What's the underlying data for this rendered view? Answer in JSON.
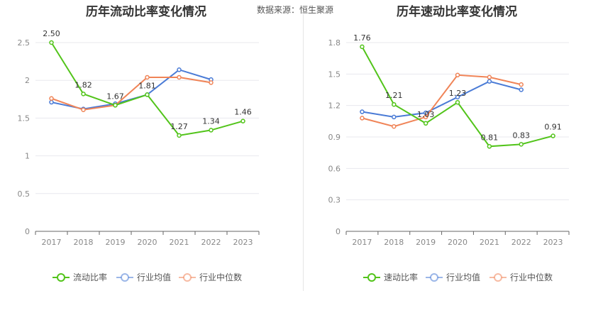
{
  "source": "数据来源：恒生聚源",
  "colors": {
    "main": "#52c41a",
    "avg": "#4a7bd6",
    "median": "#f08457"
  },
  "chart_data": [
    {
      "type": "line",
      "title": "历年流动比率变化情况",
      "x": [
        "2017",
        "2018",
        "2019",
        "2020",
        "2021",
        "2022",
        "2023"
      ],
      "ylim": [
        0,
        2.5
      ],
      "yticks": [
        "0",
        "0.5",
        "1",
        "1.5",
        "2",
        "2.5"
      ],
      "ytick_values": [
        0,
        0.5,
        1,
        1.5,
        2,
        2.5
      ],
      "grid": true,
      "legend": "bottom",
      "series": [
        {
          "name": "流动比率",
          "values": [
            2.5,
            1.82,
            1.67,
            1.81,
            1.27,
            1.34,
            1.46
          ],
          "labels": [
            "2.50",
            "1.82",
            "1.67",
            "1.81",
            "1.27",
            "1.34",
            "1.46"
          ]
        },
        {
          "name": "行业均值",
          "values": [
            1.71,
            1.62,
            1.69,
            1.81,
            2.14,
            2.01,
            null
          ]
        },
        {
          "name": "行业中位数",
          "values": [
            1.76,
            1.61,
            1.67,
            2.04,
            2.04,
            1.97,
            null
          ]
        }
      ]
    },
    {
      "type": "line",
      "title": "历年速动比率变化情况",
      "x": [
        "2017",
        "2018",
        "2019",
        "2020",
        "2021",
        "2022",
        "2023"
      ],
      "ylim": [
        0,
        1.8
      ],
      "yticks": [
        "0",
        "0.3",
        "0.6",
        "0.9",
        "1.2",
        "1.5",
        "1.8"
      ],
      "ytick_values": [
        0,
        0.3,
        0.6,
        0.9,
        1.2,
        1.5,
        1.8
      ],
      "grid": true,
      "legend": "bottom",
      "series": [
        {
          "name": "速动比率",
          "values": [
            1.76,
            1.21,
            1.03,
            1.23,
            0.81,
            0.83,
            0.91
          ],
          "labels": [
            "1.76",
            "1.21",
            "1.03",
            "1.23",
            "0.81",
            "0.83",
            "0.91"
          ]
        },
        {
          "name": "行业均值",
          "values": [
            1.14,
            1.09,
            1.13,
            1.28,
            1.43,
            1.35,
            null
          ]
        },
        {
          "name": "行业中位数",
          "values": [
            1.08,
            1.0,
            1.09,
            1.49,
            1.47,
            1.4,
            null
          ]
        }
      ]
    }
  ]
}
